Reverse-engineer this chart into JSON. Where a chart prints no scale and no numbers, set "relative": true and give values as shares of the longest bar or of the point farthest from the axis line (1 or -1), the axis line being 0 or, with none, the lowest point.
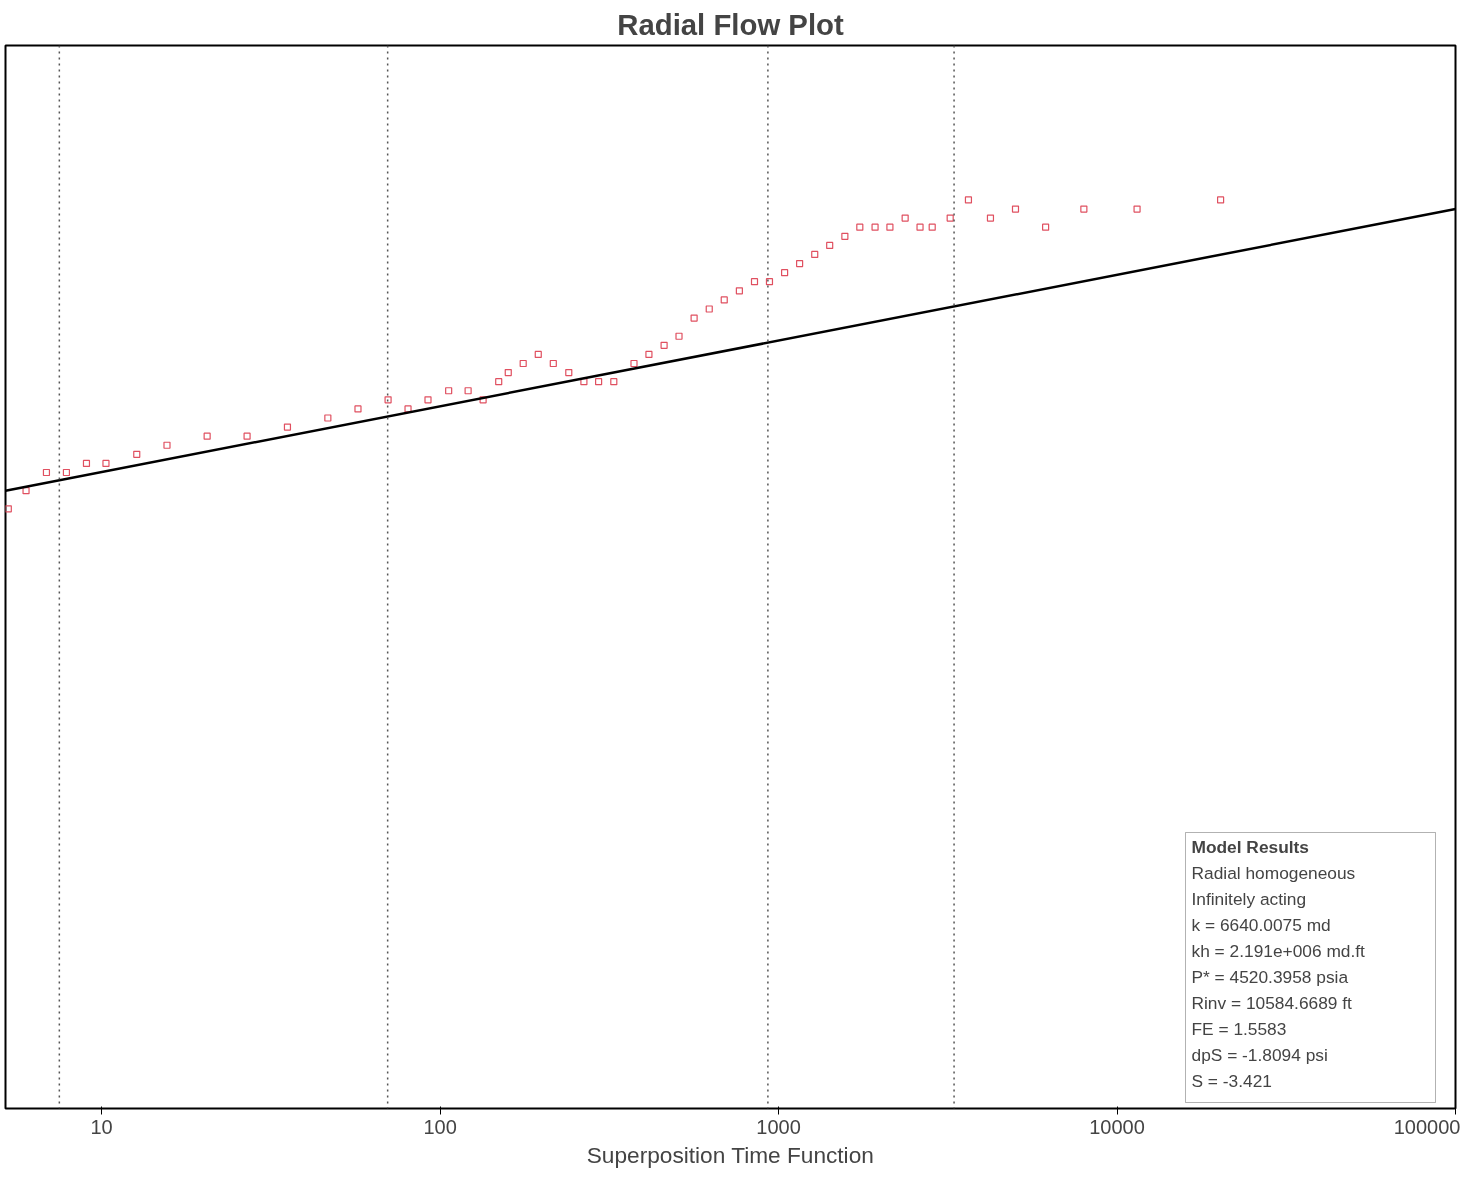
{
  "chart_data": {
    "type": "scatter",
    "title": "Radial Flow Plot",
    "xlabel": "Superposition Time Function",
    "relative": true,
    "log": "x",
    "grid": false,
    "marker": "square",
    "xlim": [
      5.2,
      100000
    ],
    "xticks": [
      10,
      100,
      1000,
      10000,
      100000
    ],
    "series": [
      {
        "color": "#e05060",
        "x": [
          5.3,
          5.98,
          6.87,
          7.87,
          9.02,
          10.3,
          12.7,
          15.6,
          20.5,
          26.9,
          35.4,
          46.6,
          57.2,
          70.2,
          80.4,
          92.1,
          106,
          121,
          134,
          149,
          159,
          176,
          195,
          216,
          240,
          266,
          294,
          326,
          374,
          414,
          459,
          508,
          563,
          624,
          691,
          766,
          849,
          940,
          1042,
          1154,
          1279,
          1416,
          1570,
          1738,
          1928,
          2133,
          2366,
          2618,
          2844,
          3214,
          3639,
          4227,
          5012,
          6152,
          7980,
          11460,
          20230
        ],
        "values": [
          0.66,
          0.68,
          0.7,
          0.7,
          0.71,
          0.71,
          0.72,
          0.73,
          0.74,
          0.74,
          0.75,
          0.76,
          0.77,
          0.78,
          0.77,
          0.78,
          0.79,
          0.79,
          0.78,
          0.8,
          0.81,
          0.82,
          0.83,
          0.82,
          0.81,
          0.8,
          0.8,
          0.8,
          0.82,
          0.83,
          0.84,
          0.85,
          0.87,
          0.88,
          0.89,
          0.9,
          0.91,
          0.91,
          0.92,
          0.93,
          0.94,
          0.95,
          0.96,
          0.97,
          0.97,
          0.97,
          0.98,
          0.97,
          0.97,
          0.98,
          1.0,
          0.98,
          0.99,
          0.97,
          0.99,
          0.99,
          1
        ]
      },
      {
        "type": "line",
        "marker": "none",
        "color": "#000000",
        "x": [
          5.2,
          100000
        ],
        "values": [
          0.68,
          0.99
        ]
      }
    ],
    "ref_lines": [
      {
        "axis": "x",
        "value": 7.5,
        "color": "#555555",
        "line_style": "dotted"
      },
      {
        "axis": "x",
        "value": 70,
        "color": "#555555",
        "line_style": "dotted"
      },
      {
        "axis": "x",
        "value": 930,
        "color": "#555555",
        "line_style": "dotted"
      },
      {
        "axis": "x",
        "value": 3300,
        "color": "#555555",
        "line_style": "dotted"
      }
    ],
    "annotations": [
      "Model Results",
      "Radial homogeneous",
      "Infinitely acting",
      "k = 6640.0075 md",
      "kh = 2.191e+006 md.ft",
      "P* = 4520.3958 psia",
      "Rinv = 10584.6689 ft",
      "FE = 1.5583",
      "dpS = -1.8094 psi",
      "S = -3.421"
    ]
  }
}
